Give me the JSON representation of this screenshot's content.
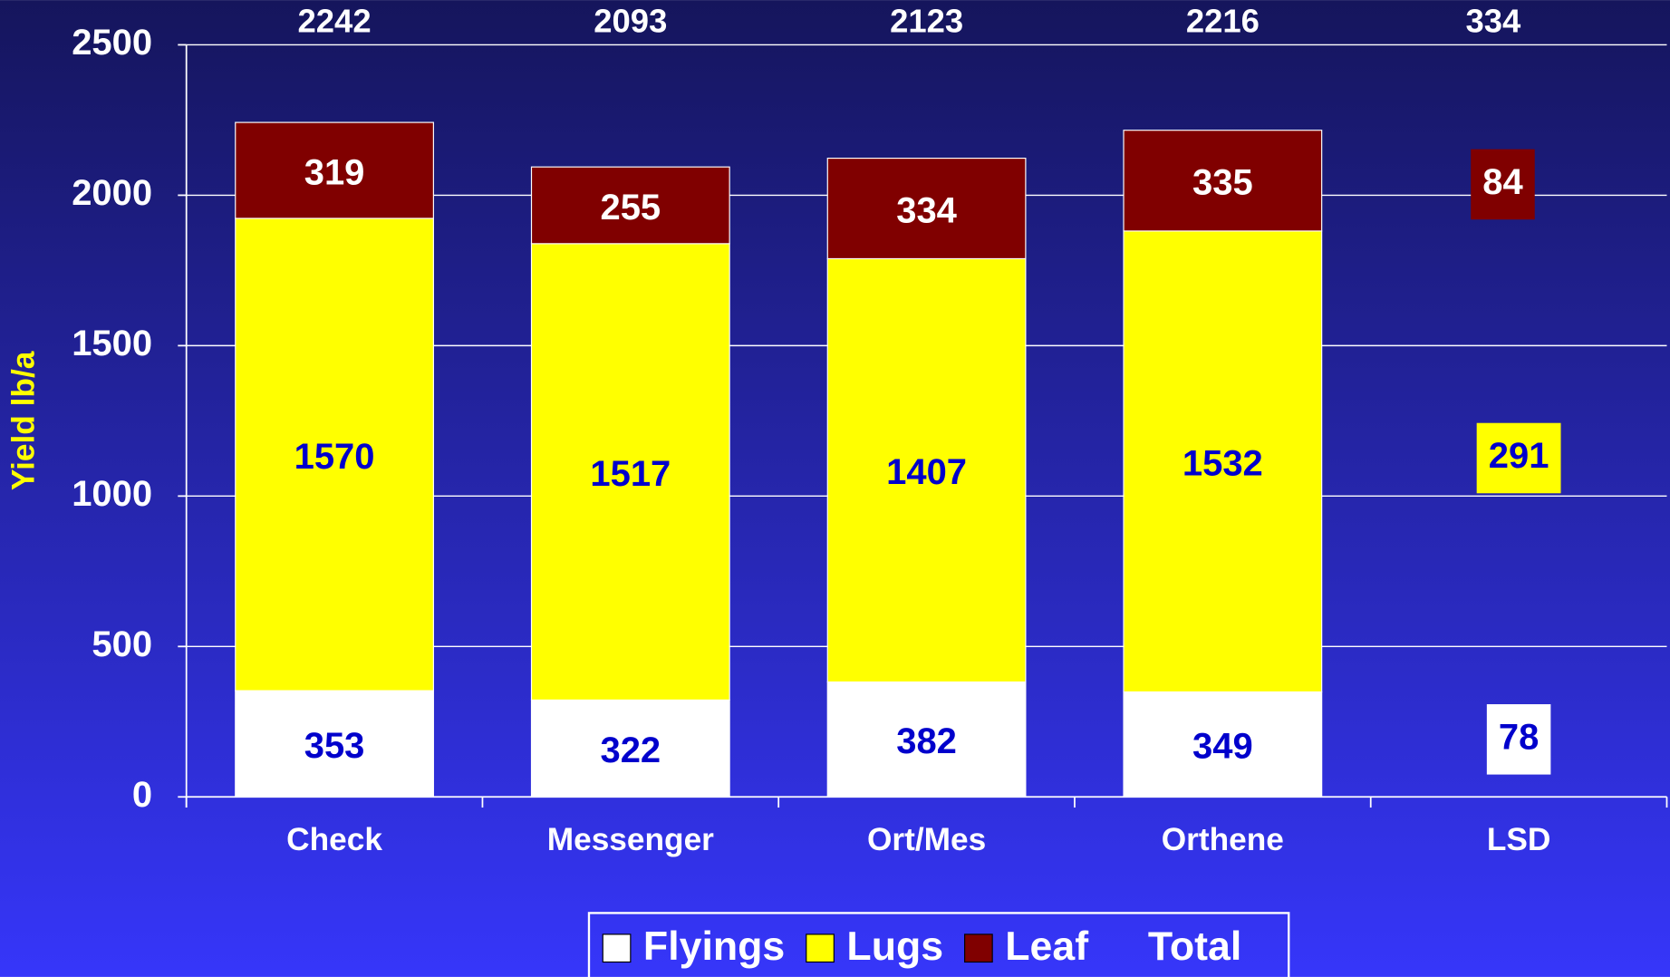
{
  "chart_data": {
    "type": "stacked_bar",
    "y_label": "Yield lb/a",
    "categories": [
      "Check",
      "Messenger",
      "Ort/Mes",
      "Orthene",
      "LSD"
    ],
    "series": [
      {
        "name": "Flyings",
        "color": "#ffffff",
        "label_color": "#0000cc",
        "values": [
          353,
          322,
          382,
          349,
          78
        ]
      },
      {
        "name": "Lugs",
        "color": "#ffff00",
        "label_color": "#0000cc",
        "values": [
          1570,
          1517,
          1407,
          1532,
          291
        ]
      },
      {
        "name": "Leaf",
        "color": "#800000",
        "label_color": "#ffffff",
        "values": [
          319,
          255,
          334,
          335,
          84
        ]
      }
    ],
    "totals": {
      "name": "Total",
      "values": [
        2242,
        2093,
        2123,
        2216,
        334
      ]
    },
    "ylim": [
      0,
      2500
    ],
    "yticks": [
      0,
      500,
      1000,
      1500,
      2000,
      2500
    ],
    "grid": true
  }
}
